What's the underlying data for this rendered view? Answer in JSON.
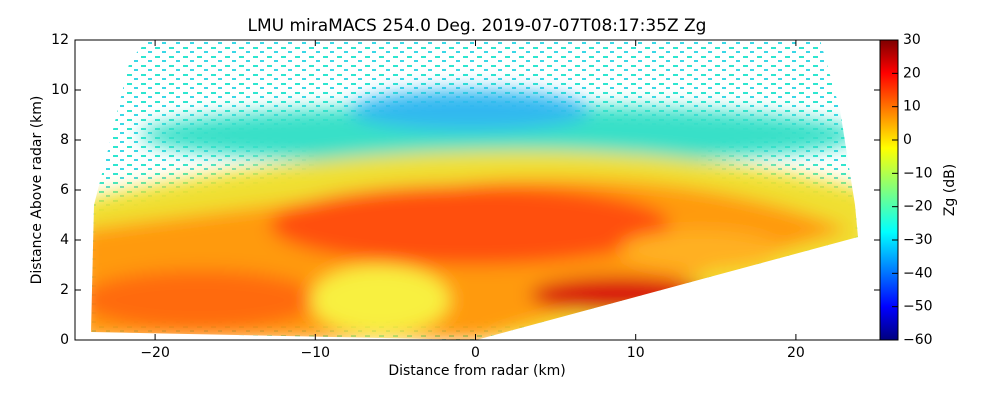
{
  "chart_data": {
    "type": "heatmap",
    "title": "LMU miraMACS 254.0 Deg. 2019-07-07T08:17:35Z  Zg",
    "x_label": "Distance from radar (km)",
    "y_label": "Distance Above radar  (km)",
    "xlim": [
      -25,
      25.25
    ],
    "xticks": [
      {
        "value": -20,
        "label": "−20"
      },
      {
        "value": -10,
        "label": "−10"
      },
      0,
      10,
      20
    ],
    "ylim": [
      0,
      12
    ],
    "yticks": [
      0,
      2,
      4,
      6,
      8,
      10,
      12
    ],
    "colorbar": {
      "label": "Zg (dB)",
      "colormap": "jet",
      "lim": [
        -60,
        30
      ],
      "ticks": [
        {
          "value": -60,
          "label": "−60"
        },
        {
          "value": -50,
          "label": "−50"
        },
        {
          "value": -40,
          "label": "−40"
        },
        {
          "value": -30,
          "label": "−30"
        },
        {
          "value": -20,
          "label": "−20"
        },
        {
          "value": -10,
          "label": "−10"
        },
        0,
        10,
        20,
        30
      ]
    }
  }
}
